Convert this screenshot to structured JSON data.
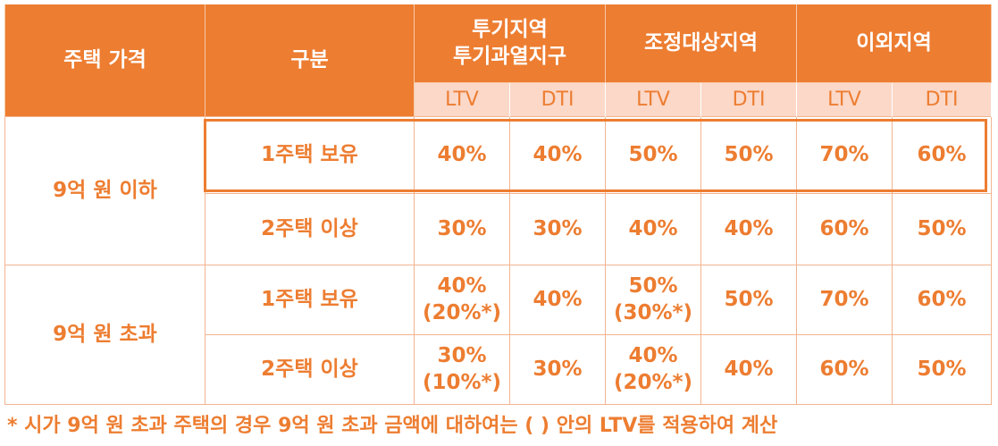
{
  "header": {
    "price_label": "주택 가격",
    "category_label": "구분",
    "regions": [
      {
        "line1": "투기지역",
        "line2": "투기과열지구"
      },
      {
        "line1": "조정대상지역",
        "line2": ""
      },
      {
        "line1": "이외지역",
        "line2": ""
      }
    ],
    "sub": [
      "LTV",
      "DTI",
      "LTV",
      "DTI",
      "LTV",
      "DTI"
    ]
  },
  "groups": [
    {
      "price": "9억 원 이하",
      "rows": [
        {
          "category": "1주택 보유",
          "cells": [
            {
              "main": "40%",
              "sub": ""
            },
            {
              "main": "40%",
              "sub": ""
            },
            {
              "main": "50%",
              "sub": ""
            },
            {
              "main": "50%",
              "sub": ""
            },
            {
              "main": "70%",
              "sub": ""
            },
            {
              "main": "60%",
              "sub": ""
            }
          ]
        },
        {
          "category": "2주택 이상",
          "cells": [
            {
              "main": "30%",
              "sub": ""
            },
            {
              "main": "30%",
              "sub": ""
            },
            {
              "main": "40%",
              "sub": ""
            },
            {
              "main": "40%",
              "sub": ""
            },
            {
              "main": "60%",
              "sub": ""
            },
            {
              "main": "50%",
              "sub": ""
            }
          ]
        }
      ]
    },
    {
      "price": "9억 원 초과",
      "rows": [
        {
          "category": "1주택 보유",
          "cells": [
            {
              "main": "40%",
              "sub": "(20%*)"
            },
            {
              "main": "40%",
              "sub": ""
            },
            {
              "main": "50%",
              "sub": "(30%*)"
            },
            {
              "main": "50%",
              "sub": ""
            },
            {
              "main": "70%",
              "sub": ""
            },
            {
              "main": "60%",
              "sub": ""
            }
          ]
        },
        {
          "category": "2주택 이상",
          "cells": [
            {
              "main": "30%",
              "sub": "(10%*)"
            },
            {
              "main": "30%",
              "sub": ""
            },
            {
              "main": "40%",
              "sub": "(20%*)"
            },
            {
              "main": "40%",
              "sub": ""
            },
            {
              "main": "60%",
              "sub": ""
            },
            {
              "main": "50%",
              "sub": ""
            }
          ]
        }
      ]
    }
  ],
  "footnote": "* 시가 9억 원 초과 주택의 경우 9억 원 초과 금액에 대하여는 (    ) 안의 LTV를 적용하여 계산",
  "colors": {
    "accent": "#ed7d31",
    "subheader_bg": "#fbd8c8",
    "border": "#f2b48f"
  }
}
